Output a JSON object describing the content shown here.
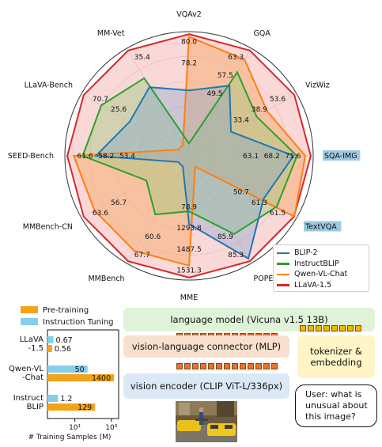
{
  "chart_data": [
    {
      "type": "radar",
      "axes": [
        "VQAv2",
        "GQA",
        "VizWiz",
        "SQA-IMG",
        "TextVQA",
        "POPE",
        "MME",
        "MMBench",
        "MMBench-CN",
        "SEED-Bench",
        "LLaVA-Bench",
        "MM-Vet"
      ],
      "highlighted_axes": [
        "SQA-IMG",
        "TextVQA"
      ],
      "series": [
        {
          "name": "BLIP-2",
          "color": "#1f77b4",
          "values": [
            41.0,
            41.0,
            19.6,
            61.0,
            42.5,
            85.3,
            1293.8,
            null,
            null,
            46.4,
            38.1,
            22.4
          ]
        },
        {
          "name": "InstructBLIP",
          "color": "#2ca02c",
          "values": [
            null,
            49.5,
            33.4,
            63.1,
            50.7,
            78.9,
            1212.8,
            36.0,
            23.7,
            53.4,
            58.2,
            25.6
          ]
        },
        {
          "name": "Qwen-VL-Chat",
          "color": "#ff7f0e",
          "values": [
            78.2,
            57.5,
            38.9,
            68.2,
            61.5,
            null,
            1487.5,
            60.6,
            56.7,
            58.2,
            null,
            null
          ]
        },
        {
          "name": "LLaVA-1.5",
          "color": "#d62728",
          "values": [
            80.0,
            63.3,
            53.6,
            71.6,
            61.3,
            85.9,
            1531.3,
            67.7,
            63.6,
            61.6,
            70.7,
            35.4
          ]
        }
      ],
      "value_labels": {
        "VQAv2": [
          "80.0",
          "78.2"
        ],
        "GQA": [
          "63.3",
          "57.5",
          "49.5"
        ],
        "VizWiz": [
          "53.6",
          "38.9",
          "33.4"
        ],
        "SQA-IMG": [
          "71.6",
          "68.2",
          "63.1"
        ],
        "TextVQA": [
          "61.5",
          "61.3",
          "50.7"
        ],
        "POPE": [
          "85.3",
          "85.9"
        ],
        "MME": [
          "1531.3",
          "1487.5",
          "1293.8",
          "78.9"
        ],
        "MMBench": [
          "67.7",
          "60.6"
        ],
        "MMBench-CN": [
          "63.6",
          "56.7"
        ],
        "SEED-Bench": [
          "61.6",
          "58.2",
          "53.4"
        ],
        "LLaVA-Bench": [
          "70.7",
          "25.6"
        ],
        "MM-Vet": [
          "35.4"
        ]
      },
      "legend_position": "bottom-right",
      "grid": true
    },
    {
      "type": "bar",
      "orientation": "horizontal",
      "categories": [
        [
          "LLaVA",
          "-1.5"
        ],
        [
          "Qwen-VL",
          "-Chat"
        ],
        [
          "Instruct",
          "BLIP"
        ]
      ],
      "series": [
        {
          "name": "Pre-training",
          "color": "#f5a31a",
          "values": [
            0.56,
            1400,
            129
          ],
          "labels": [
            "0.56",
            "1400",
            "129"
          ]
        },
        {
          "name": "Instruction Tuning",
          "color": "#87ceeb",
          "values": [
            0.67,
            50,
            1.2
          ],
          "labels": [
            "0.67",
            "50",
            "1.2"
          ]
        }
      ],
      "xscale": "log",
      "xticks": [
        "10¹",
        "10³"
      ],
      "xlabel": "# Training Samples (M)",
      "legend_position": "top"
    }
  ],
  "legend": [
    {
      "label": "BLIP-2",
      "color": "#1f77b4"
    },
    {
      "label": "InstructBLIP",
      "color": "#2ca02c"
    },
    {
      "label": "Qwen-VL-Chat",
      "color": "#ff7f0e"
    },
    {
      "label": "LLaVA-1.5",
      "color": "#d62728"
    }
  ],
  "diagram": {
    "language_model": "language model (Vicuna v1.5 13B)",
    "connector": "vision-language connector (MLP)",
    "tokenizer": "tokenizer & embedding",
    "vision_encoder": "vision encoder (CLIP ViT-L/336px)",
    "user_prompt": "User: what is unusual about this image?"
  }
}
